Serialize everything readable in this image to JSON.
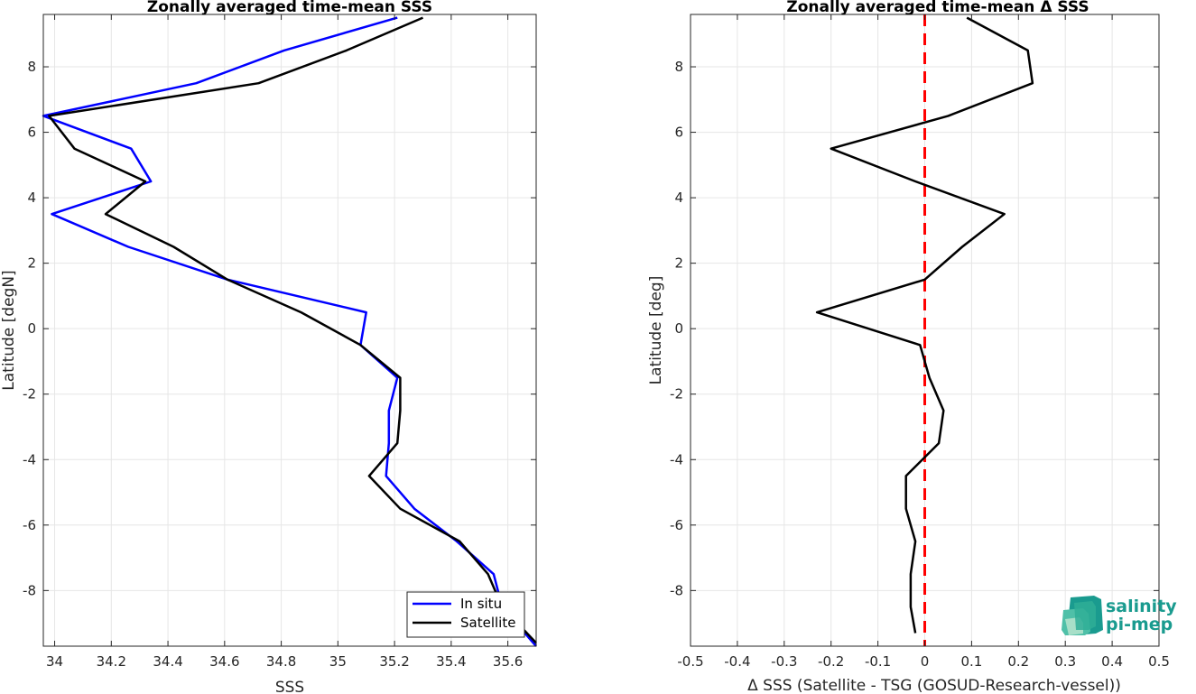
{
  "chart_data": [
    {
      "type": "line",
      "title": "Zonally averaged time-mean SSS",
      "xlabel": "SSS",
      "ylabel": "Latitude [degN]",
      "xlim": [
        33.96,
        35.7
      ],
      "ylim": [
        -9.7,
        9.6
      ],
      "xticks": [
        "34",
        "34.2",
        "34.4",
        "34.6",
        "34.8",
        "35",
        "35.2",
        "35.4",
        "35.6"
      ],
      "yticks": [
        "8",
        "6",
        "4",
        "2",
        "0",
        "-2",
        "-4",
        "-6",
        "-8"
      ],
      "grid": true,
      "legend_position": "bottom-right",
      "series": [
        {
          "name": "In situ",
          "color": "#0000ff",
          "points": [
            [
              35.21,
              9.5
            ],
            [
              34.81,
              8.5
            ],
            [
              34.5,
              7.5
            ],
            [
              33.96,
              6.5
            ],
            [
              34.27,
              5.5
            ],
            [
              34.34,
              4.5
            ],
            [
              33.99,
              3.5
            ],
            [
              34.26,
              2.5
            ],
            [
              34.61,
              1.5
            ],
            [
              35.1,
              0.5
            ],
            [
              35.08,
              -0.5
            ],
            [
              35.21,
              -1.5
            ],
            [
              35.18,
              -2.5
            ],
            [
              35.18,
              -3.5
            ],
            [
              35.17,
              -4.5
            ],
            [
              35.27,
              -5.5
            ],
            [
              35.42,
              -6.5
            ],
            [
              35.55,
              -7.5
            ],
            [
              35.58,
              -8.5
            ],
            [
              35.7,
              -9.7
            ]
          ]
        },
        {
          "name": "Satellite",
          "color": "#000000",
          "points": [
            [
              35.3,
              9.5
            ],
            [
              35.03,
              8.5
            ],
            [
              34.72,
              7.5
            ],
            [
              33.98,
              6.5
            ],
            [
              34.07,
              5.5
            ],
            [
              34.32,
              4.5
            ],
            [
              34.18,
              3.5
            ],
            [
              34.42,
              2.5
            ],
            [
              34.61,
              1.5
            ],
            [
              34.87,
              0.5
            ],
            [
              35.08,
              -0.5
            ],
            [
              35.22,
              -1.5
            ],
            [
              35.22,
              -2.5
            ],
            [
              35.21,
              -3.5
            ],
            [
              35.11,
              -4.5
            ],
            [
              35.22,
              -5.5
            ],
            [
              35.43,
              -6.5
            ],
            [
              35.53,
              -7.5
            ],
            [
              35.58,
              -8.5
            ],
            [
              35.7,
              -9.6
            ]
          ]
        }
      ]
    },
    {
      "type": "line",
      "title": "Zonally averaged time-mean Δ SSS",
      "xlabel": "Δ SSS (Satellite - TSG (GOSUD-Research-vessel))",
      "ylabel": "Latitude [deg]",
      "xlim": [
        -0.5,
        0.5
      ],
      "ylim": [
        -9.7,
        9.6
      ],
      "xticks": [
        "-0.5",
        "-0.4",
        "-0.3",
        "-0.2",
        "-0.1",
        "0",
        "0.1",
        "0.2",
        "0.3",
        "0.4",
        "0.5"
      ],
      "yticks": [
        "8",
        "6",
        "4",
        "2",
        "0",
        "-2",
        "-4",
        "-6",
        "-8"
      ],
      "grid": true,
      "reference_line": {
        "x": 0,
        "color": "#ff0000",
        "style": "dashed"
      },
      "series": [
        {
          "color": "#000000",
          "points": [
            [
              0.09,
              9.5
            ],
            [
              0.22,
              8.5
            ],
            [
              0.23,
              7.5
            ],
            [
              0.05,
              6.5
            ],
            [
              -0.2,
              5.5
            ],
            [
              -0.02,
              4.5
            ],
            [
              0.17,
              3.5
            ],
            [
              0.08,
              2.5
            ],
            [
              0.0,
              1.5
            ],
            [
              -0.23,
              0.5
            ],
            [
              -0.01,
              -0.5
            ],
            [
              0.01,
              -1.5
            ],
            [
              0.04,
              -2.5
            ],
            [
              0.03,
              -3.5
            ],
            [
              -0.04,
              -4.5
            ],
            [
              -0.04,
              -5.5
            ],
            [
              -0.02,
              -6.5
            ],
            [
              -0.03,
              -7.5
            ],
            [
              -0.03,
              -8.5
            ],
            [
              -0.02,
              -9.3
            ]
          ]
        }
      ]
    }
  ],
  "logo": {
    "line1": "salinity",
    "line2": "pi-mep",
    "color": "#1a9b8f"
  }
}
